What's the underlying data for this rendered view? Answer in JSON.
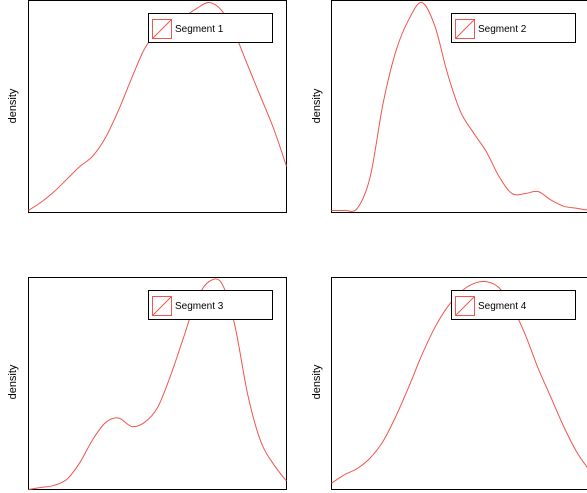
{
  "chart_data": [
    {
      "type": "line",
      "xlabel": "",
      "ylabel": "density",
      "legend": {
        "placement": "top-right",
        "label": "Segment 1"
      },
      "grid": false,
      "series": [
        {
          "name": "Segment 1",
          "color": "#f0564b",
          "x": [
            0.0,
            0.05,
            0.1,
            0.15,
            0.2,
            0.25,
            0.3,
            0.35,
            0.4,
            0.45,
            0.5,
            0.55,
            0.6,
            0.65,
            0.7,
            0.75,
            0.8,
            0.85,
            0.9,
            0.95,
            1.0
          ],
          "y": [
            0.01,
            0.05,
            0.1,
            0.16,
            0.22,
            0.27,
            0.36,
            0.49,
            0.64,
            0.78,
            0.86,
            0.9,
            0.93,
            0.97,
            1.0,
            0.96,
            0.85,
            0.7,
            0.55,
            0.4,
            0.22
          ]
        }
      ]
    },
    {
      "type": "line",
      "xlabel": "",
      "ylabel": "density",
      "legend": {
        "placement": "top-right",
        "label": "Segment 2"
      },
      "grid": false,
      "series": [
        {
          "name": "Segment 2",
          "color": "#f0564b",
          "x": [
            0.0,
            0.05,
            0.1,
            0.15,
            0.2,
            0.25,
            0.3,
            0.35,
            0.4,
            0.45,
            0.5,
            0.55,
            0.6,
            0.65,
            0.7,
            0.75,
            0.8,
            0.85,
            0.9,
            0.95,
            1.0
          ],
          "y": [
            0.01,
            0.01,
            0.02,
            0.17,
            0.52,
            0.77,
            0.92,
            1.0,
            0.89,
            0.66,
            0.48,
            0.38,
            0.29,
            0.17,
            0.09,
            0.09,
            0.1,
            0.06,
            0.03,
            0.02,
            0.01
          ]
        }
      ]
    },
    {
      "type": "line",
      "xlabel": "",
      "ylabel": "density",
      "legend": {
        "placement": "top-right",
        "label": "Segment 3"
      },
      "grid": false,
      "series": [
        {
          "name": "Segment 3",
          "color": "#f0564b",
          "x": [
            0.0,
            0.05,
            0.1,
            0.15,
            0.2,
            0.25,
            0.3,
            0.35,
            0.4,
            0.45,
            0.5,
            0.55,
            0.6,
            0.65,
            0.7,
            0.75,
            0.8,
            0.85,
            0.9,
            0.95,
            1.0
          ],
          "y": [
            0.0,
            0.01,
            0.02,
            0.05,
            0.13,
            0.24,
            0.32,
            0.34,
            0.3,
            0.32,
            0.39,
            0.54,
            0.72,
            0.9,
            0.99,
            0.98,
            0.78,
            0.45,
            0.23,
            0.12,
            0.04
          ]
        }
      ]
    },
    {
      "type": "line",
      "xlabel": "",
      "ylabel": "density",
      "legend": {
        "placement": "top-right",
        "label": "Segment 4"
      },
      "grid": false,
      "series": [
        {
          "name": "Segment 4",
          "color": "#f0564b",
          "x": [
            0.0,
            0.05,
            0.1,
            0.15,
            0.2,
            0.25,
            0.3,
            0.35,
            0.4,
            0.45,
            0.5,
            0.55,
            0.6,
            0.65,
            0.7,
            0.75,
            0.8,
            0.85,
            0.9,
            0.95,
            1.0
          ],
          "y": [
            0.03,
            0.07,
            0.1,
            0.15,
            0.23,
            0.35,
            0.49,
            0.64,
            0.77,
            0.87,
            0.94,
            0.98,
            0.99,
            0.96,
            0.87,
            0.74,
            0.58,
            0.44,
            0.3,
            0.18,
            0.09
          ]
        }
      ]
    }
  ]
}
